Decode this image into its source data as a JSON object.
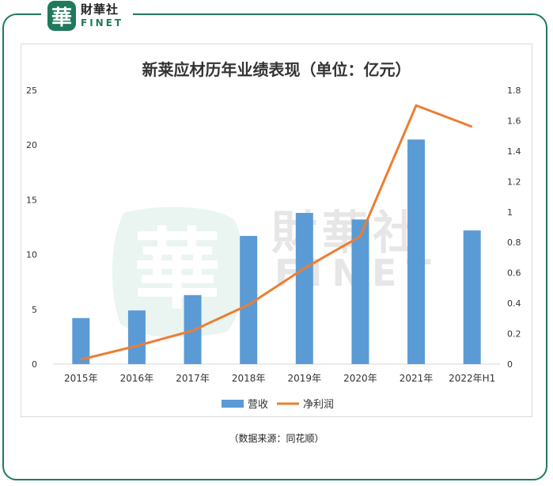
{
  "logo": {
    "mark": "華",
    "cn": "財華社",
    "en": "FINET"
  },
  "watermark": {
    "mark": "華",
    "cn": "財華社",
    "en": "FINET"
  },
  "source_note": "（数据来源：同花顺）",
  "colors": {
    "bar": "#5b9bd5",
    "line": "#ed7d31",
    "brand": "#1f7a5c",
    "axis": "#d9d9d9"
  },
  "chart_data": {
    "type": "bar",
    "title": "新莱应材历年业绩表现（单位：亿元）",
    "categories": [
      "2015年",
      "2016年",
      "2017年",
      "2018年",
      "2019年",
      "2020年",
      "2021年",
      "2022年H1"
    ],
    "series": [
      {
        "name": "营收",
        "type": "bar",
        "axis": "left",
        "values": [
          4.2,
          4.9,
          6.3,
          11.7,
          13.8,
          13.2,
          20.5,
          12.2
        ]
      },
      {
        "name": "净利润",
        "type": "line",
        "axis": "right",
        "values": [
          0.03,
          0.12,
          0.22,
          0.39,
          0.63,
          0.84,
          1.7,
          1.56
        ]
      }
    ],
    "y_left": {
      "min": 0,
      "max": 25,
      "ticks": [
        "0",
        "5",
        "10",
        "15",
        "20",
        "25"
      ]
    },
    "y_right": {
      "min": 0,
      "max": 1.8,
      "ticks": [
        "0",
        "0.2",
        "0.4",
        "0.6",
        "0.8",
        "1",
        "1.2",
        "1.4",
        "1.6",
        "1.8"
      ]
    },
    "grid": false,
    "legend_position": "bottom"
  }
}
